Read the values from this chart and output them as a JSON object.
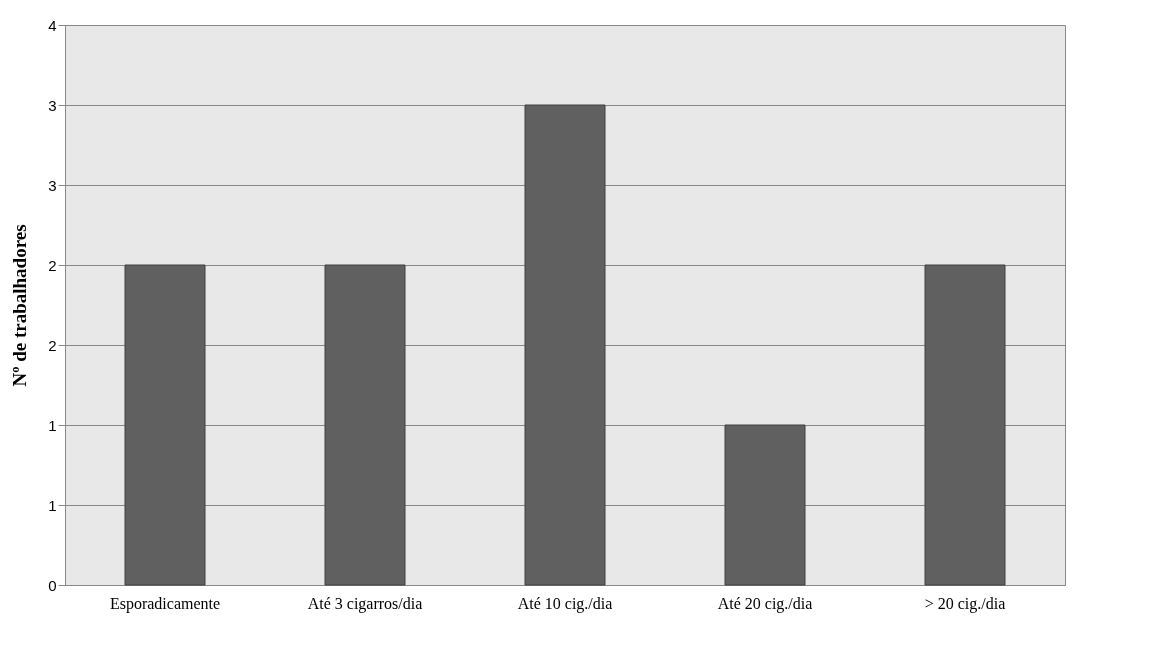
{
  "chart_data": {
    "type": "bar",
    "ylabel": "Nº de trabalhadores",
    "categories": [
      "Esporadicamente",
      "Até 3 cigarros/dia",
      "Até 10 cig./dia",
      "Até 20 cig./dia",
      "> 20 cig./dia"
    ],
    "values": [
      2,
      2,
      3,
      1,
      2
    ],
    "color": "#606060",
    "ylim": [
      0,
      3.5
    ],
    "yticks": [
      0,
      {
        "value": 0.5,
        "label": "1"
      },
      1,
      {
        "value": 1.5,
        "label": "2"
      },
      2,
      {
        "value": 2.5,
        "label": "3"
      },
      3,
      {
        "value": 3.5,
        "label": "4"
      }
    ],
    "grid": "y"
  }
}
